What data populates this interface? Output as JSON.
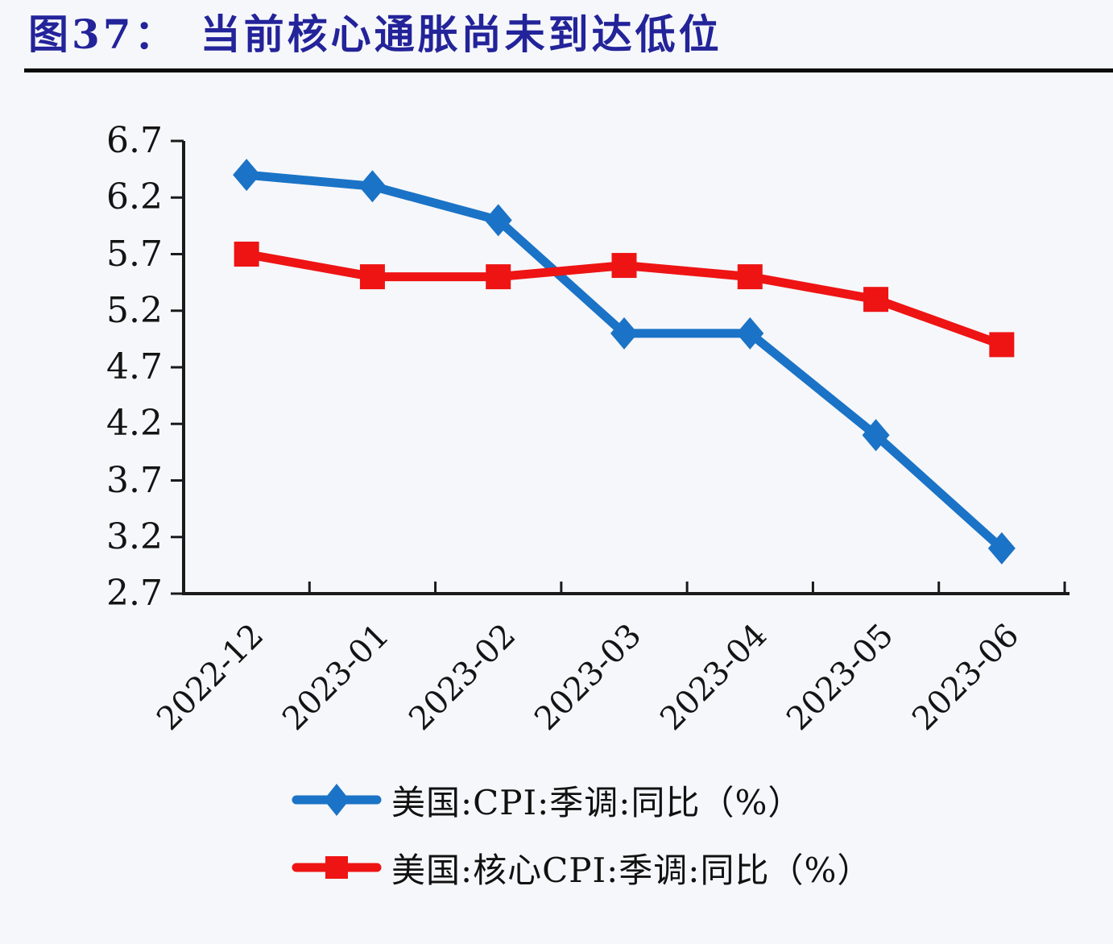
{
  "header": {
    "figure_tag": "图37：",
    "title": "当前核心通胀尚未到达低位"
  },
  "chart_data": {
    "type": "line",
    "title": "图37：当前核心通胀尚未到达低位",
    "categories": [
      "2022-12",
      "2023-01",
      "2023-02",
      "2023-03",
      "2023-04",
      "2023-05",
      "2023-06"
    ],
    "series": [
      {
        "name": "美国:CPI:季调:同比（%）",
        "marker": "diamond",
        "color": "#1a73c6",
        "values": [
          6.4,
          6.3,
          6.0,
          5.0,
          5.0,
          4.1,
          3.1
        ]
      },
      {
        "name": "美国:核心CPI:季调:同比（%）",
        "marker": "square",
        "color": "#ee1414",
        "values": [
          5.7,
          5.5,
          5.5,
          5.6,
          5.5,
          5.3,
          4.9
        ]
      }
    ],
    "xlabel": "",
    "ylabel": "",
    "ylim": [
      2.7,
      6.7
    ],
    "ytick_step": 0.5,
    "yticks": [
      2.7,
      3.2,
      3.7,
      4.2,
      4.7,
      5.2,
      5.7,
      6.2,
      6.7
    ],
    "grid": false,
    "legend_position": "bottom-left"
  },
  "colors": {
    "title": "#23239a",
    "rule": "#0b0b0b",
    "axis": "#1a1a1a",
    "tick_text": "#141414"
  }
}
